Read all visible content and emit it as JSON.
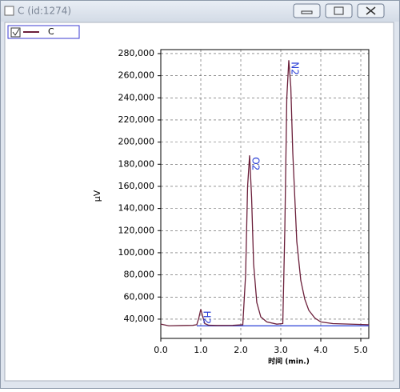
{
  "window": {
    "title": "C (id:1274)"
  },
  "chart_data": {
    "type": "line",
    "x_label": "时间 (min.)",
    "y_label": "µV",
    "xlim": [
      0,
      5.2
    ],
    "ylim": [
      22600,
      283600
    ],
    "xticks": [
      {
        "value": 0,
        "label": "0.0"
      },
      {
        "value": 1,
        "label": "1.0"
      },
      {
        "value": 2,
        "label": "2.0"
      },
      {
        "value": 3,
        "label": "3.0"
      },
      {
        "value": 4,
        "label": "4.0"
      },
      {
        "value": 5,
        "label": "5.0"
      }
    ],
    "yticks": [
      {
        "value": 40000,
        "label": "40,000"
      },
      {
        "value": 60000,
        "label": "60,000"
      },
      {
        "value": 80000,
        "label": "80,000"
      },
      {
        "value": 100000,
        "label": "100,000"
      },
      {
        "value": 120000,
        "label": "120,000"
      },
      {
        "value": 140000,
        "label": "140,000"
      },
      {
        "value": 160000,
        "label": "160,000"
      },
      {
        "value": 180000,
        "label": "180,000"
      },
      {
        "value": 200000,
        "label": "200,000"
      },
      {
        "value": 220000,
        "label": "220,000"
      },
      {
        "value": 240000,
        "label": "240,000"
      },
      {
        "value": 260000,
        "label": "260,000"
      },
      {
        "value": 280000,
        "label": "280,000"
      }
    ],
    "grid": true,
    "series": [
      {
        "name": "C",
        "color": "#6b1f3a",
        "x": [
          0,
          0.2,
          0.5,
          0.8,
          0.9,
          0.95,
          1.0,
          1.05,
          1.1,
          1.2,
          1.4,
          1.8,
          2.05,
          2.12,
          2.17,
          2.22,
          2.27,
          2.32,
          2.4,
          2.5,
          2.65,
          2.9,
          3.05,
          3.1,
          3.15,
          3.2,
          3.25,
          3.3,
          3.4,
          3.5,
          3.6,
          3.7,
          3.85,
          4.0,
          4.3,
          4.7,
          5.2
        ],
        "values": [
          35500,
          34000,
          34200,
          34400,
          35000,
          41000,
          49000,
          42000,
          36000,
          34500,
          34300,
          34400,
          35000,
          80000,
          160000,
          188000,
          150000,
          90000,
          55000,
          42000,
          37500,
          35500,
          36000,
          120000,
          240000,
          274000,
          250000,
          190000,
          110000,
          75000,
          58000,
          48000,
          41000,
          37500,
          36000,
          35500,
          35000
        ]
      }
    ],
    "baseline": {
      "color": "#2a3fd6",
      "x": [
        0.9,
        5.2
      ],
      "values": [
        34000,
        34000
      ]
    },
    "annotations": [
      {
        "text": "H2",
        "x": 1.0,
        "y": 49000
      },
      {
        "text": "O2",
        "x": 2.22,
        "y": 188000
      },
      {
        "text": "N2",
        "x": 3.2,
        "y": 274000
      }
    ]
  }
}
